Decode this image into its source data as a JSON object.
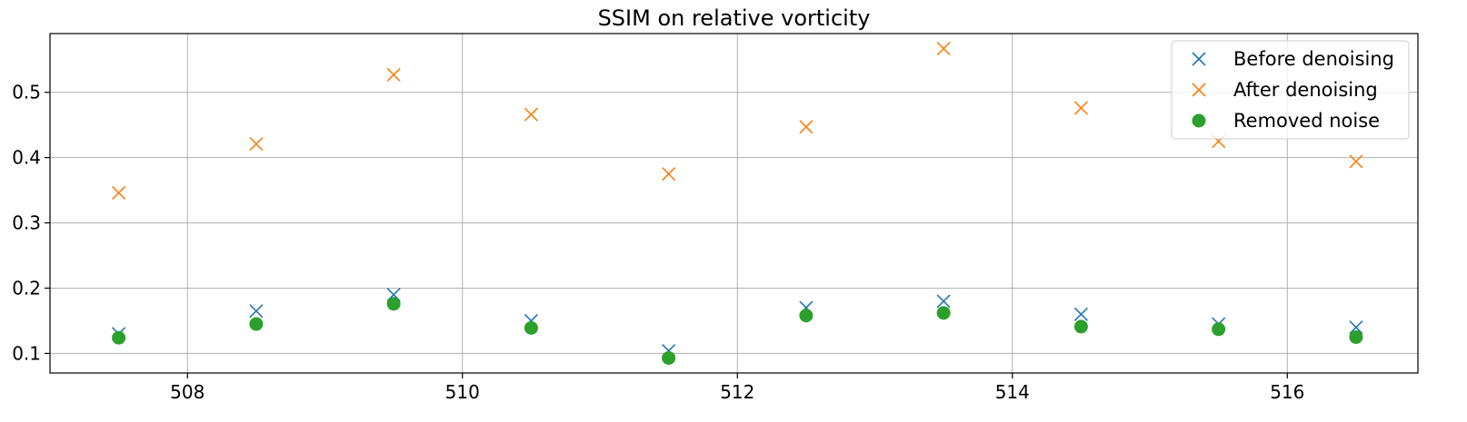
{
  "chart_data": {
    "type": "scatter",
    "title": "SSIM on relative vorticity",
    "xlabel": "",
    "ylabel": "",
    "xlim": [
      507.0,
      516.95
    ],
    "ylim": [
      0.07,
      0.59
    ],
    "xticks": [
      508,
      510,
      512,
      514,
      516
    ],
    "yticks": [
      0.1,
      0.2,
      0.3,
      0.4,
      0.5
    ],
    "xtick_labels": [
      "508",
      "510",
      "512",
      "514",
      "516"
    ],
    "ytick_labels": [
      "0.1",
      "0.2",
      "0.3",
      "0.4",
      "0.5"
    ],
    "grid": true,
    "legend_position": "top-right",
    "x": [
      507.5,
      508.5,
      509.5,
      510.5,
      511.5,
      512.5,
      513.5,
      514.5,
      515.5,
      516.5
    ],
    "series": [
      {
        "name": "Before denoising",
        "marker": "x",
        "color": "#1f77b4",
        "values": [
          0.13,
          0.165,
          0.19,
          0.15,
          0.104,
          0.17,
          0.18,
          0.16,
          0.145,
          0.14
        ]
      },
      {
        "name": "After denoising",
        "marker": "x",
        "color": "#ff7f0e",
        "values": [
          0.346,
          0.421,
          0.527,
          0.466,
          0.375,
          0.447,
          0.567,
          0.476,
          0.425,
          0.394
        ]
      },
      {
        "name": "Removed noise",
        "marker": "circle",
        "color": "#2ca02c",
        "values": [
          0.124,
          0.145,
          0.176,
          0.139,
          0.093,
          0.158,
          0.162,
          0.141,
          0.137,
          0.125
        ]
      }
    ]
  }
}
